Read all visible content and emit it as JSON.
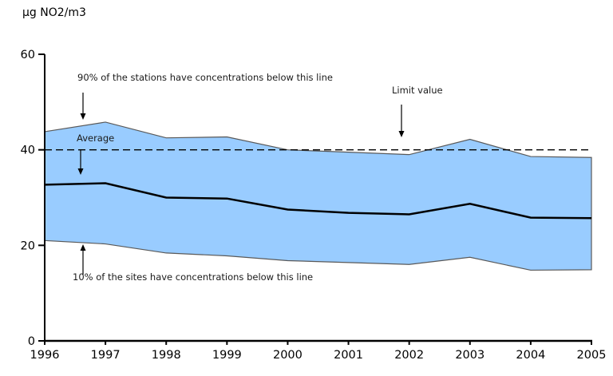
{
  "chart_data": {
    "type": "area",
    "title": "µg NO2/m3",
    "x": [
      1996,
      1997,
      1998,
      1999,
      2000,
      2001,
      2002,
      2003,
      2004,
      2005
    ],
    "ylim": [
      0,
      60
    ],
    "yticks": [
      0,
      20,
      40,
      60
    ],
    "limit_value": 40,
    "grid": false,
    "legend": false,
    "series": [
      {
        "name": "90th percentile (band top)",
        "values": [
          43.8,
          45.8,
          42.5,
          42.7,
          40.0,
          39.5,
          39.0,
          42.2,
          38.6,
          38.4
        ]
      },
      {
        "name": "Average",
        "values": [
          32.7,
          33.0,
          30.0,
          29.8,
          27.5,
          26.8,
          26.5,
          28.7,
          25.8,
          25.7
        ]
      },
      {
        "name": "10th percentile (band bottom)",
        "values": [
          21.0,
          20.3,
          18.4,
          17.8,
          16.8,
          16.4,
          16.0,
          17.5,
          14.8,
          14.9
        ]
      }
    ],
    "annotations": {
      "p90": {
        "text": "90% of the stations have concentrations below this line"
      },
      "average": {
        "text": "Average"
      },
      "limit": {
        "text": "Limit value"
      },
      "p10": {
        "text": "10% of the sites have concentrations below this line"
      }
    },
    "colors": {
      "band": "#99CCFF",
      "band_edge": "#595959",
      "average_line": "#000000",
      "limit_line": "#000000",
      "axis": "#000000",
      "text": "#000000",
      "background": "#FFFFFF"
    }
  }
}
